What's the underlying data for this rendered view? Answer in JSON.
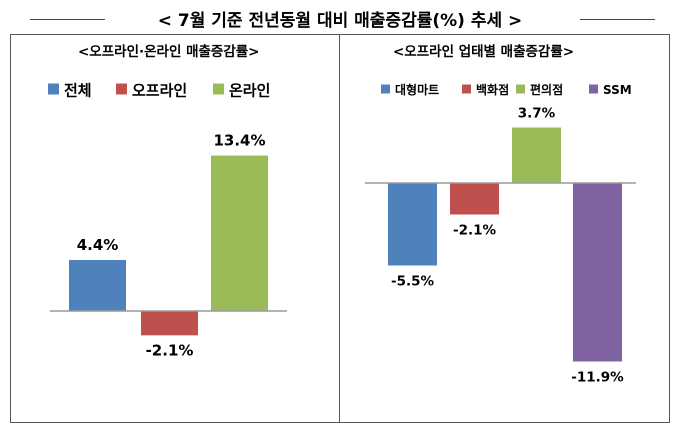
{
  "title": "< 7월 기준 전년동월 대비 매출증감률(%) 추세 >",
  "chart_data": [
    {
      "type": "bar",
      "title": "<오프라인·온라인 매출증감률>",
      "categories": [
        "전체",
        "오프라인",
        "온라인"
      ],
      "values": [
        4.4,
        -2.1,
        13.4
      ],
      "value_labels": [
        "4.4%",
        "-2.1%",
        "13.4%"
      ],
      "colors": [
        "#4f81bd",
        "#c0504d",
        "#9bbb59"
      ],
      "legend": {
        "position": "top",
        "entries": [
          "전체",
          "오프라인",
          "온라인"
        ]
      },
      "grid": false
    },
    {
      "type": "bar",
      "title": "<오프라인 업태별 매출증감률>",
      "categories": [
        "대형마트",
        "백화점",
        "편의점",
        "SSM"
      ],
      "values": [
        -5.5,
        -2.1,
        3.7,
        -11.9
      ],
      "value_labels": [
        "-5.5%",
        "-2.1%",
        "3.7%",
        "-11.9%"
      ],
      "colors": [
        "#4f81bd",
        "#c0504d",
        "#9bbb59",
        "#8064a2"
      ],
      "legend": {
        "position": "top",
        "entries": [
          "대형마트",
          "백화점",
          "편의점",
          "SSM"
        ]
      },
      "grid": false
    }
  ]
}
